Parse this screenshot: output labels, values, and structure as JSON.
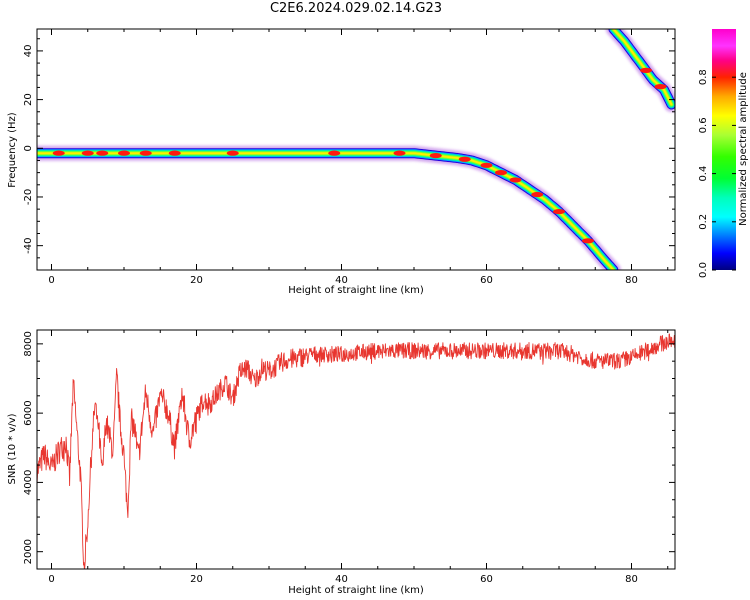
{
  "title": "C2E6.2024.029.02.14.G23",
  "chart_data": [
    {
      "type": "heatmap",
      "xlabel": "Height of straight line (km)",
      "ylabel": "Frequency (Hz)",
      "xlim": [
        -2,
        86
      ],
      "ylim": [
        -50,
        49
      ],
      "xticks": [
        0,
        20,
        40,
        60,
        80
      ],
      "yticks": [
        -40,
        -20,
        0,
        20,
        40
      ],
      "colorbar": {
        "label": "Normalized spectral amplitude",
        "ticks": [
          0.0,
          0.2,
          0.4,
          0.6,
          0.8
        ],
        "range": [
          0,
          1
        ],
        "colormap": "gist_ncar"
      },
      "ridges": [
        {
          "x": [
            -2,
            10,
            20,
            30,
            40,
            50,
            53,
            56,
            58,
            60,
            62,
            64,
            66,
            68,
            70,
            72,
            74,
            76,
            77.5
          ],
          "y": [
            -2,
            -2,
            -2,
            -2,
            -2,
            -2,
            -3,
            -4,
            -5,
            -7,
            -10,
            -13,
            -17,
            -21,
            -26,
            -32,
            -38,
            -45,
            -50
          ]
        },
        {
          "x": [
            77.5,
            79,
            81,
            83,
            84.5,
            85.5
          ],
          "y": [
            49,
            44,
            36,
            28,
            24,
            18
          ]
        }
      ],
      "hot_spots_x": [
        1,
        5,
        7,
        10,
        13,
        17,
        25,
        39,
        48,
        53,
        57,
        60,
        62,
        64,
        67,
        70,
        74,
        82,
        84
      ]
    },
    {
      "type": "line",
      "xlabel": "Height of straight line (km)",
      "ylabel": "SNR (10 * v/v)",
      "xlim": [
        -2,
        86
      ],
      "ylim": [
        1500,
        8400
      ],
      "xticks": [
        0,
        20,
        40,
        60,
        80
      ],
      "yticks": [
        2000,
        4000,
        6000,
        8000
      ],
      "color": "#e8362f",
      "x": [
        -2,
        -1,
        0,
        1,
        2,
        2.5,
        3,
        3.5,
        4,
        4.5,
        5,
        5.5,
        6,
        6.5,
        7,
        7.5,
        8,
        8.5,
        9,
        9.5,
        10,
        10.5,
        11,
        11.5,
        12,
        13,
        14,
        15,
        16,
        17,
        18,
        19,
        20,
        21,
        22,
        23,
        24,
        25,
        26,
        27,
        28,
        29,
        30,
        32,
        34,
        36,
        38,
        40,
        45,
        50,
        55,
        60,
        65,
        70,
        72,
        75,
        78,
        80,
        82,
        84,
        86
      ],
      "y": [
        4300,
        4800,
        4400,
        4900,
        5200,
        4100,
        6900,
        5500,
        4200,
        1500,
        2900,
        4800,
        6300,
        5600,
        4200,
        5800,
        5300,
        4900,
        7100,
        5600,
        4800,
        3100,
        5800,
        5500,
        4700,
        6600,
        5400,
        6500,
        6100,
        5000,
        6600,
        5200,
        5900,
        6400,
        6300,
        6600,
        6900,
        6400,
        7200,
        7300,
        6900,
        7300,
        7200,
        7500,
        7600,
        7700,
        7700,
        7700,
        7800,
        7800,
        7800,
        7800,
        7800,
        7800,
        7700,
        7500,
        7500,
        7600,
        7800,
        8000,
        8100
      ]
    }
  ]
}
